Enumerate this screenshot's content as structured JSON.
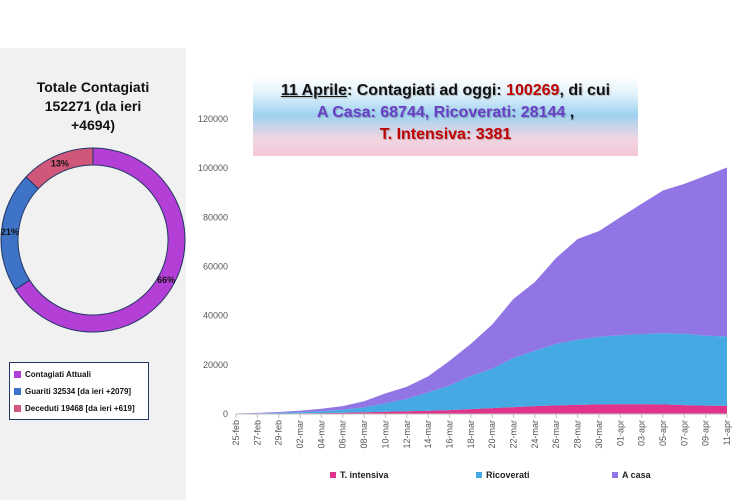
{
  "total": {
    "line1": "Totale Contagiati",
    "line2": "152271 (da ieri",
    "line3": "+4694)"
  },
  "banner": {
    "date": "11 Aprile",
    "prefix": ": Contagiati ad oggi: ",
    "total": "100269",
    "suffix": ", di cui",
    "casa_label": "A Casa: 68744",
    "sep": ", ",
    "ricoverati_label": "Ricoverati: 28144",
    "end": " ,",
    "ti_label": "T. Intensiva: 3381"
  },
  "legend": {
    "items": [
      {
        "label": "Contagiati Attuali",
        "color": "#b43fd6"
      },
      {
        "label": "Guariti 32534 [da ieri +2079]",
        "color": "#3e73c8"
      },
      {
        "label": "Deceduti 19468 [da ieri +619]",
        "color": "#d0567a"
      }
    ]
  },
  "bottom_legend": {
    "ti": "T. intensiva",
    "ric": "Ricoverati",
    "casa": "A casa"
  },
  "chart_data": [
    {
      "type": "pie",
      "title": "Totale Contagiati 152271 (da ieri +4694)",
      "labels": [
        "Contagiati Attuali",
        "Guariti 32534 [da ieri +2079]",
        "Deceduti 19468 [da ieri +619]"
      ],
      "values": [
        66,
        21,
        13
      ],
      "value_labels": [
        "66%",
        "21%",
        "13%"
      ],
      "colors": [
        "#b43fd6",
        "#3e73c8",
        "#d0567a"
      ],
      "donut": true
    },
    {
      "type": "area",
      "stacked": true,
      "title": "11 Aprile: Contagiati ad oggi: 100269, di cui A Casa: 68744, Ricoverati: 28144 , T. Intensiva: 3381",
      "x_tick_labels": [
        "25-feb",
        "27-feb",
        "29-feb",
        "02-mar",
        "04-mar",
        "06-mar",
        "08-mar",
        "10-mar",
        "12-mar",
        "14-mar",
        "16-mar",
        "18-mar",
        "20-mar",
        "22-mar",
        "24-mar",
        "26-mar",
        "28-mar",
        "30-mar",
        "01-apr",
        "03-apr",
        "05-apr",
        "07-apr",
        "09-apr",
        "11-apr"
      ],
      "ylim": [
        0,
        120000
      ],
      "yticks": [
        0,
        20000,
        40000,
        60000,
        80000,
        100000,
        120000
      ],
      "ytick_labels": [
        "0",
        "20000",
        "40000",
        "60000",
        "80000",
        "100000",
        "120000"
      ],
      "series": [
        {
          "name": "T. intensiva",
          "color": "#e0338a",
          "values": [
            50,
            100,
            150,
            250,
            350,
            500,
            700,
            900,
            1100,
            1300,
            1600,
            2000,
            2400,
            2800,
            3200,
            3500,
            3700,
            3900,
            4000,
            4000,
            3900,
            3600,
            3400,
            3381
          ]
        },
        {
          "name": "Ricoverati",
          "color": "#45a9e3",
          "values": [
            50,
            150,
            300,
            500,
            800,
            1200,
            2000,
            3500,
            5000,
            7500,
            10000,
            13500,
            16000,
            20000,
            22500,
            25000,
            26500,
            27500,
            28000,
            28500,
            29000,
            29000,
            28500,
            28144
          ]
        },
        {
          "name": "A casa",
          "color": "#9175e4",
          "values": [
            100,
            200,
            350,
            600,
            1000,
            1500,
            2500,
            4000,
            5000,
            6500,
            10000,
            13000,
            18000,
            24000,
            28000,
            35000,
            41000,
            43000,
            48000,
            53000,
            58000,
            61000,
            65000,
            68744
          ]
        }
      ]
    }
  ]
}
